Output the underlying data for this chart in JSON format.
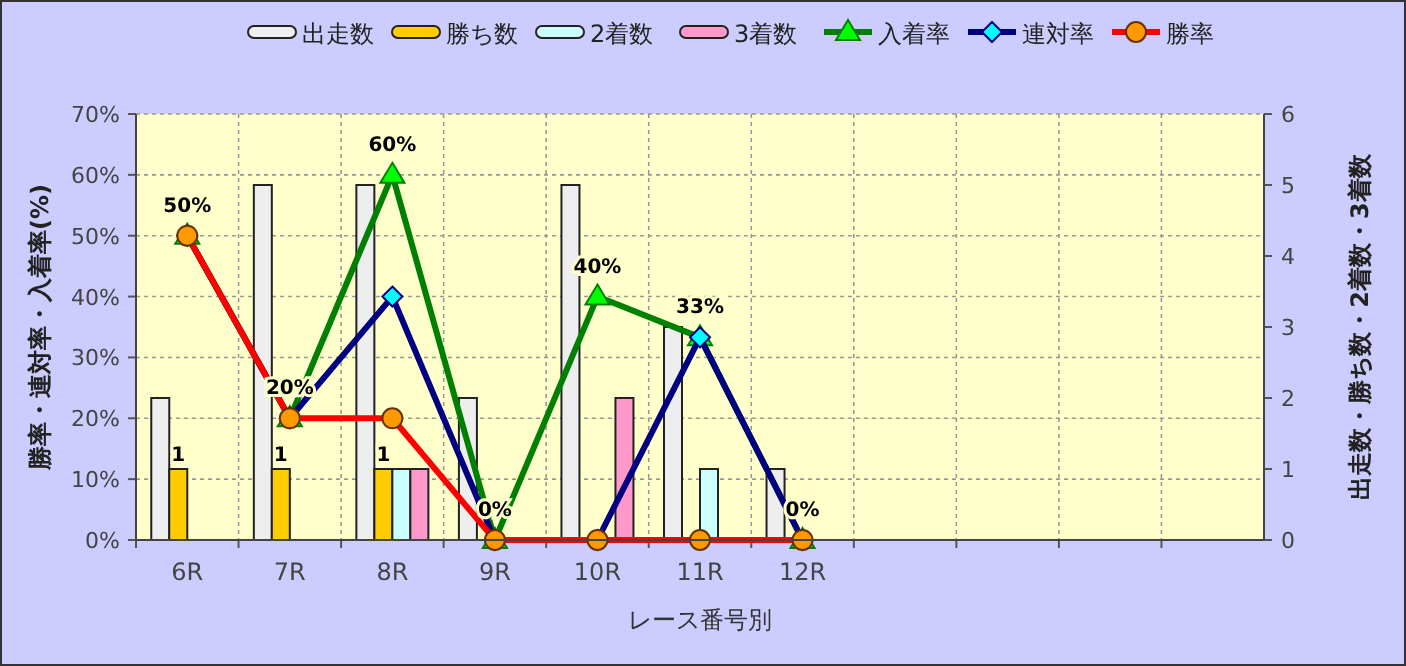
{
  "chart_data": {
    "type": "bar",
    "xlabel": "レース番号別",
    "ylabel": "勝率・連対率・入着率(%)",
    "y2label": "出走数・勝ち数・2着数・3着数",
    "categories": [
      "6R",
      "7R",
      "8R",
      "9R",
      "10R",
      "11R",
      "12R",
      null,
      null,
      null,
      null
    ],
    "ylim": [
      0,
      70
    ],
    "yticks": [
      {
        "value": 0,
        "label": "0%"
      },
      {
        "value": 10,
        "label": "10%"
      },
      {
        "value": 20,
        "label": "20%"
      },
      {
        "value": 30,
        "label": "30%"
      },
      {
        "value": 40,
        "label": "40%"
      },
      {
        "value": 50,
        "label": "50%"
      },
      {
        "value": 60,
        "label": "60%"
      },
      {
        "value": 70,
        "label": "70%"
      }
    ],
    "y2lim": [
      0,
      6
    ],
    "y2ticks": [
      0,
      1,
      2,
      3,
      4,
      5,
      6
    ],
    "grid": true,
    "legend": "top",
    "series": [
      {
        "name": "出走数",
        "axis": "y2",
        "color": "#eeeeee",
        "values": [
          2,
          5,
          5,
          2,
          5,
          3,
          1,
          null,
          null,
          null,
          null
        ]
      },
      {
        "name": "勝ち数",
        "axis": "y2",
        "color": "#ffcc00",
        "values": [
          1,
          1,
          1,
          0,
          0,
          0,
          0,
          null,
          null,
          null,
          null
        ],
        "value_labels": [
          "1",
          "1",
          "1",
          null,
          null,
          null,
          null,
          null,
          null,
          null,
          null
        ]
      },
      {
        "name": "2着数",
        "axis": "y2",
        "color": "#ccffff",
        "values": [
          0,
          0,
          1,
          0,
          0,
          1,
          0,
          null,
          null,
          null,
          null
        ]
      },
      {
        "name": "3着数",
        "axis": "y2",
        "color": "#ff99cc",
        "values": [
          0,
          0,
          1,
          0,
          2,
          0,
          0,
          null,
          null,
          null,
          null
        ]
      },
      {
        "name": "入着率",
        "type": "line",
        "color": "#008000",
        "marker": "triangle",
        "values": [
          50,
          20,
          60,
          0,
          40,
          33.3,
          0,
          null,
          null,
          null,
          null
        ],
        "value_labels": [
          "50%",
          "20%",
          "60%",
          "0%",
          "40%",
          "33%",
          "0%",
          null,
          null,
          null,
          null
        ]
      },
      {
        "name": "連対率",
        "type": "line",
        "color": "#000080",
        "marker": "diamond",
        "values": [
          50,
          20,
          40,
          0,
          0,
          33.3,
          0,
          null,
          null,
          null,
          null
        ]
      },
      {
        "name": "勝率",
        "type": "line",
        "color": "#ff0000",
        "marker": "circle",
        "values": [
          50,
          20,
          20,
          0,
          0,
          0,
          0,
          null,
          null,
          null,
          null
        ]
      }
    ]
  }
}
